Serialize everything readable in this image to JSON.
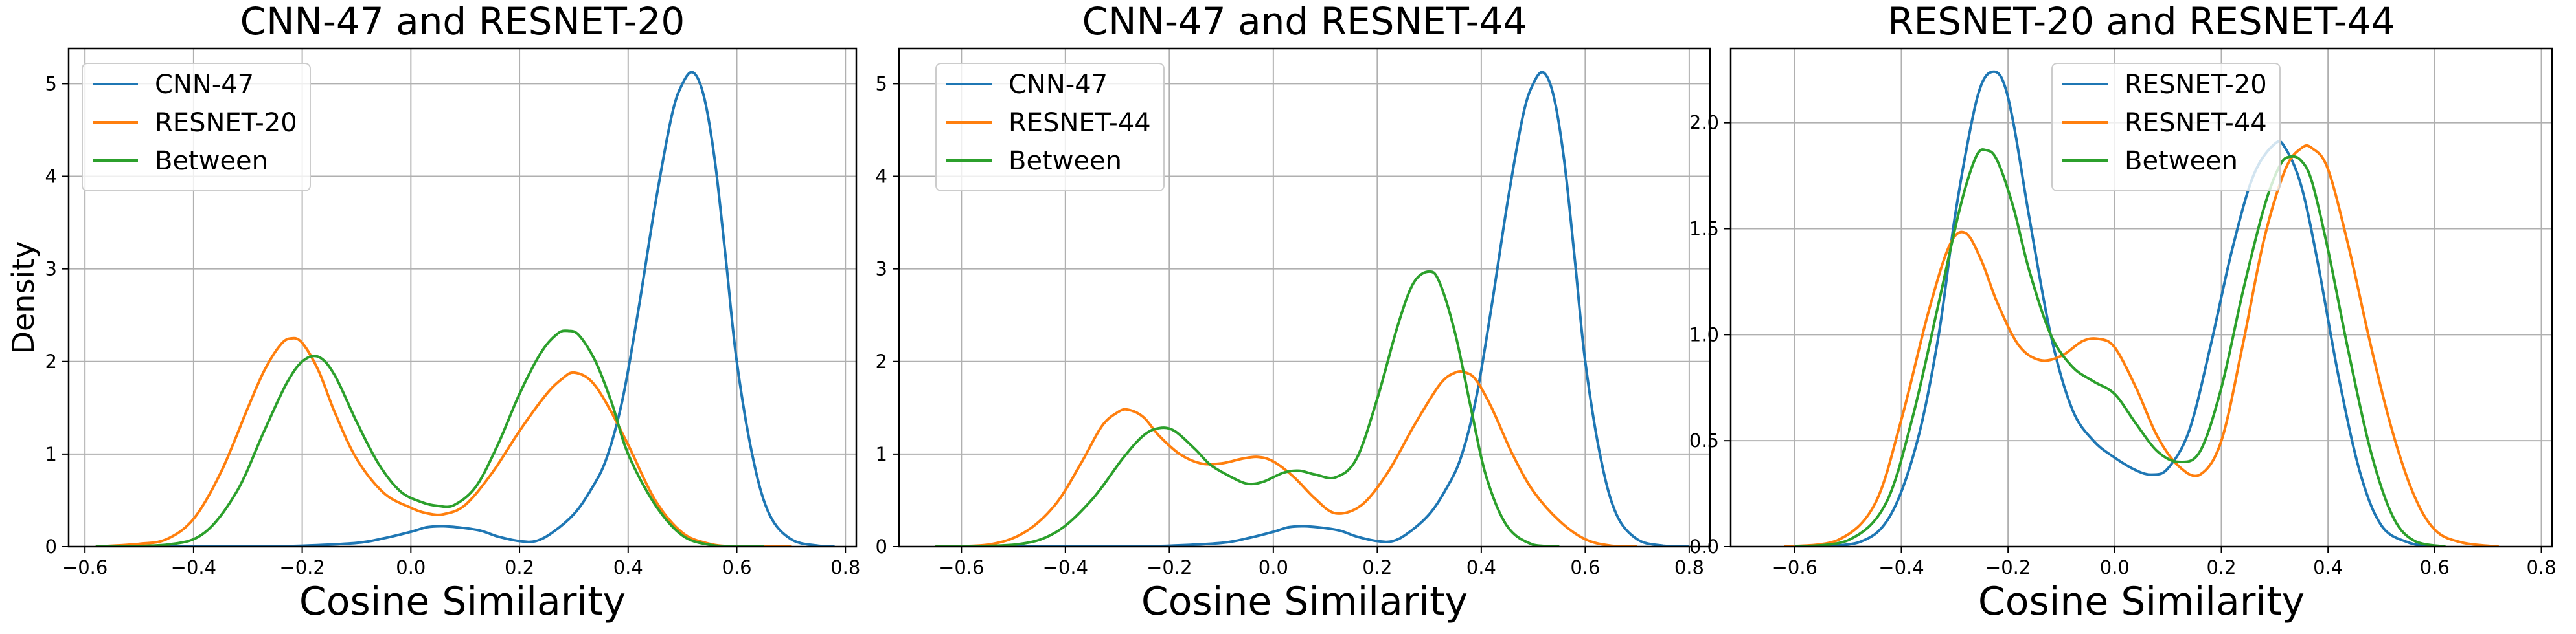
{
  "chart_data": [
    {
      "type": "line",
      "title": "CNN-47 and RESNET-20",
      "xlabel": "Cosine Similarity",
      "ylabel": "Density",
      "xlim": [
        -0.63,
        0.82
      ],
      "ylim": [
        0,
        5.38
      ],
      "xticks": [
        -0.6,
        -0.4,
        -0.2,
        0.0,
        0.2,
        0.4,
        0.6,
        0.8
      ],
      "xtick_labels": [
        "−0.6",
        "−0.4",
        "−0.2",
        "0.0",
        "0.2",
        "0.4",
        "0.6",
        "0.8"
      ],
      "yticks": [
        0,
        1,
        2,
        3,
        4,
        5
      ],
      "ytick_labels": [
        "0",
        "1",
        "2",
        "3",
        "4",
        "5"
      ],
      "grid": true,
      "legend": "upper left",
      "series": [
        {
          "name": "CNN-47",
          "color": "#1f77b4",
          "x": [
            -0.58,
            -0.45,
            -0.3,
            -0.2,
            -0.1,
            -0.05,
            0.0,
            0.03,
            0.06,
            0.1,
            0.13,
            0.16,
            0.2,
            0.23,
            0.26,
            0.3,
            0.33,
            0.36,
            0.39,
            0.42,
            0.45,
            0.48,
            0.5,
            0.52,
            0.54,
            0.56,
            0.58,
            0.6,
            0.63,
            0.66,
            0.7,
            0.75,
            0.78
          ],
          "values": [
            0,
            0,
            0,
            0.01,
            0.04,
            0.09,
            0.16,
            0.21,
            0.22,
            0.2,
            0.17,
            0.11,
            0.06,
            0.06,
            0.15,
            0.35,
            0.6,
            0.95,
            1.6,
            2.6,
            3.7,
            4.65,
            5.0,
            5.12,
            4.85,
            4.15,
            3.1,
            2.0,
            0.95,
            0.35,
            0.08,
            0.01,
            0
          ]
        },
        {
          "name": "RESNET-20",
          "color": "#ff7f0e",
          "x": [
            -0.58,
            -0.5,
            -0.45,
            -0.4,
            -0.35,
            -0.3,
            -0.27,
            -0.24,
            -0.22,
            -0.2,
            -0.17,
            -0.14,
            -0.1,
            -0.05,
            0.0,
            0.03,
            0.06,
            0.1,
            0.15,
            0.2,
            0.25,
            0.28,
            0.3,
            0.33,
            0.36,
            0.4,
            0.45,
            0.5,
            0.55,
            0.6,
            0.65,
            0.7
          ],
          "values": [
            0,
            0.03,
            0.08,
            0.3,
            0.8,
            1.5,
            1.9,
            2.18,
            2.25,
            2.2,
            1.9,
            1.45,
            0.95,
            0.58,
            0.42,
            0.36,
            0.35,
            0.45,
            0.8,
            1.25,
            1.65,
            1.82,
            1.88,
            1.8,
            1.55,
            1.1,
            0.5,
            0.15,
            0.03,
            0,
            0,
            0
          ]
        },
        {
          "name": "Between",
          "color": "#2ca02c",
          "x": [
            -0.58,
            -0.45,
            -0.38,
            -0.32,
            -0.27,
            -0.23,
            -0.2,
            -0.17,
            -0.14,
            -0.1,
            -0.06,
            -0.02,
            0.02,
            0.05,
            0.08,
            0.12,
            0.16,
            0.2,
            0.24,
            0.27,
            0.29,
            0.31,
            0.34,
            0.37,
            0.4,
            0.45,
            0.5,
            0.55,
            0.6,
            0.65
          ],
          "values": [
            0,
            0.02,
            0.15,
            0.6,
            1.25,
            1.75,
            2.0,
            2.05,
            1.85,
            1.35,
            0.9,
            0.6,
            0.48,
            0.44,
            0.45,
            0.65,
            1.1,
            1.65,
            2.1,
            2.3,
            2.33,
            2.28,
            2.0,
            1.55,
            1.0,
            0.45,
            0.12,
            0.02,
            0,
            0
          ]
        }
      ]
    },
    {
      "type": "line",
      "title": "CNN-47 and RESNET-44",
      "xlabel": "Cosine Similarity",
      "ylabel": "",
      "xlim": [
        -0.72,
        0.84
      ],
      "ylim": [
        0,
        5.38
      ],
      "xticks": [
        -0.6,
        -0.4,
        -0.2,
        0.0,
        0.2,
        0.4,
        0.6,
        0.8
      ],
      "xtick_labels": [
        "−0.6",
        "−0.4",
        "−0.2",
        "0.0",
        "0.2",
        "0.4",
        "0.6",
        "0.8"
      ],
      "yticks": [
        0,
        1,
        2,
        3,
        4,
        5
      ],
      "ytick_labels": [
        "0",
        "1",
        "2",
        "3",
        "4",
        "5"
      ],
      "grid": true,
      "legend": "upper left",
      "series": [
        {
          "name": "CNN-47",
          "color": "#1f77b4",
          "x": [
            -0.6,
            -0.45,
            -0.3,
            -0.2,
            -0.1,
            -0.05,
            0.0,
            0.03,
            0.06,
            0.1,
            0.13,
            0.16,
            0.2,
            0.23,
            0.26,
            0.3,
            0.33,
            0.36,
            0.39,
            0.42,
            0.45,
            0.48,
            0.5,
            0.52,
            0.54,
            0.56,
            0.58,
            0.6,
            0.63,
            0.66,
            0.7,
            0.75,
            0.8
          ],
          "values": [
            0,
            0,
            0,
            0.01,
            0.04,
            0.09,
            0.16,
            0.21,
            0.22,
            0.2,
            0.17,
            0.11,
            0.06,
            0.06,
            0.15,
            0.35,
            0.6,
            0.95,
            1.6,
            2.6,
            3.7,
            4.65,
            5.0,
            5.12,
            4.85,
            4.15,
            3.1,
            2.0,
            0.95,
            0.35,
            0.08,
            0.01,
            0
          ]
        },
        {
          "name": "RESNET-44",
          "color": "#ff7f0e",
          "x": [
            -0.65,
            -0.55,
            -0.48,
            -0.42,
            -0.37,
            -0.33,
            -0.3,
            -0.28,
            -0.25,
            -0.22,
            -0.18,
            -0.14,
            -0.1,
            -0.06,
            -0.03,
            0.0,
            0.04,
            0.08,
            0.12,
            0.17,
            0.22,
            0.27,
            0.32,
            0.35,
            0.37,
            0.39,
            0.42,
            0.46,
            0.5,
            0.55,
            0.6,
            0.65,
            0.7
          ],
          "values": [
            0,
            0.02,
            0.15,
            0.45,
            0.9,
            1.3,
            1.45,
            1.48,
            1.4,
            1.2,
            1.0,
            0.9,
            0.9,
            0.95,
            0.97,
            0.92,
            0.75,
            0.52,
            0.36,
            0.45,
            0.8,
            1.3,
            1.75,
            1.88,
            1.88,
            1.8,
            1.5,
            1.0,
            0.6,
            0.28,
            0.08,
            0.01,
            0
          ]
        },
        {
          "name": "Between",
          "color": "#2ca02c",
          "x": [
            -0.65,
            -0.5,
            -0.42,
            -0.35,
            -0.29,
            -0.25,
            -0.22,
            -0.19,
            -0.15,
            -0.12,
            -0.08,
            -0.05,
            -0.02,
            0.02,
            0.05,
            0.08,
            0.12,
            0.16,
            0.2,
            0.24,
            0.27,
            0.3,
            0.32,
            0.35,
            0.38,
            0.41,
            0.45,
            0.5,
            0.55
          ],
          "values": [
            0,
            0.02,
            0.15,
            0.5,
            0.95,
            1.2,
            1.28,
            1.25,
            1.05,
            0.88,
            0.75,
            0.68,
            0.7,
            0.8,
            0.82,
            0.78,
            0.75,
            0.95,
            1.6,
            2.4,
            2.85,
            2.97,
            2.85,
            2.3,
            1.5,
            0.75,
            0.22,
            0.02,
            0
          ]
        }
      ]
    },
    {
      "type": "line",
      "title": "RESNET-20 and RESNET-44",
      "xlabel": "Cosine Similarity",
      "ylabel": "",
      "xlim": [
        -0.72,
        0.82
      ],
      "ylim": [
        0,
        2.35
      ],
      "xticks": [
        -0.6,
        -0.4,
        -0.2,
        0.0,
        0.2,
        0.4,
        0.6,
        0.8
      ],
      "xtick_labels": [
        "−0.6",
        "−0.4",
        "−0.2",
        "0.0",
        "0.2",
        "0.4",
        "0.6",
        "0.8"
      ],
      "yticks": [
        0,
        0.5,
        1.0,
        1.5,
        2.0
      ],
      "ytick_labels": [
        "0.0",
        "0.5",
        "1.0",
        "1.5",
        "2.0"
      ],
      "grid": true,
      "legend": "upper center",
      "series": [
        {
          "name": "RESNET-20",
          "color": "#1f77b4",
          "x": [
            -0.58,
            -0.48,
            -0.42,
            -0.37,
            -0.33,
            -0.3,
            -0.27,
            -0.25,
            -0.23,
            -0.21,
            -0.19,
            -0.16,
            -0.12,
            -0.08,
            -0.04,
            0.0,
            0.04,
            0.07,
            0.1,
            0.14,
            0.18,
            0.22,
            0.26,
            0.3,
            0.32,
            0.35,
            0.38,
            0.42,
            0.46,
            0.5,
            0.55,
            0.6
          ],
          "values": [
            0,
            0.02,
            0.15,
            0.5,
            1.0,
            1.55,
            1.98,
            2.18,
            2.24,
            2.2,
            2.0,
            1.55,
            1.0,
            0.65,
            0.5,
            0.42,
            0.36,
            0.34,
            0.37,
            0.55,
            0.95,
            1.4,
            1.75,
            1.9,
            1.88,
            1.7,
            1.35,
            0.8,
            0.35,
            0.1,
            0.02,
            0
          ]
        },
        {
          "name": "RESNET-44",
          "color": "#ff7f0e",
          "x": [
            -0.62,
            -0.52,
            -0.45,
            -0.4,
            -0.35,
            -0.31,
            -0.28,
            -0.25,
            -0.22,
            -0.18,
            -0.14,
            -0.1,
            -0.06,
            -0.03,
            0.0,
            0.04,
            0.08,
            0.12,
            0.16,
            0.2,
            0.24,
            0.28,
            0.32,
            0.35,
            0.37,
            0.4,
            0.44,
            0.48,
            0.52,
            0.56,
            0.6,
            0.65,
            0.72
          ],
          "values": [
            0,
            0.03,
            0.2,
            0.6,
            1.1,
            1.42,
            1.48,
            1.35,
            1.15,
            0.95,
            0.88,
            0.9,
            0.97,
            0.98,
            0.94,
            0.75,
            0.52,
            0.38,
            0.34,
            0.5,
            0.95,
            1.45,
            1.78,
            1.88,
            1.88,
            1.78,
            1.4,
            0.95,
            0.55,
            0.25,
            0.08,
            0.02,
            0
          ]
        },
        {
          "name": "Between",
          "color": "#2ca02c",
          "x": [
            -0.6,
            -0.5,
            -0.43,
            -0.38,
            -0.33,
            -0.29,
            -0.26,
            -0.24,
            -0.22,
            -0.19,
            -0.16,
            -0.12,
            -0.08,
            -0.04,
            0.0,
            0.04,
            0.08,
            0.12,
            0.16,
            0.2,
            0.24,
            0.28,
            0.31,
            0.33,
            0.35,
            0.37,
            0.4,
            0.44,
            0.48,
            0.52,
            0.56,
            0.62
          ],
          "values": [
            0,
            0.03,
            0.2,
            0.6,
            1.15,
            1.6,
            1.84,
            1.87,
            1.82,
            1.6,
            1.3,
            1.0,
            0.85,
            0.78,
            0.72,
            0.58,
            0.45,
            0.4,
            0.45,
            0.75,
            1.2,
            1.6,
            1.8,
            1.84,
            1.82,
            1.72,
            1.4,
            0.9,
            0.45,
            0.15,
            0.03,
            0
          ]
        }
      ]
    }
  ]
}
